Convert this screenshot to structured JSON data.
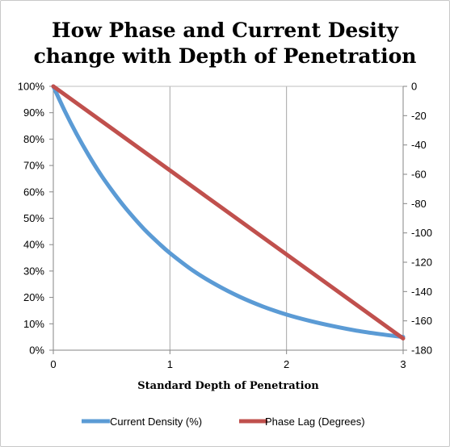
{
  "chart_data": {
    "type": "line",
    "title_lines": [
      "How Phase and Current Desity",
      "change with Depth of Penetration"
    ],
    "xlabel": "Standard Depth of Penetration",
    "ylabel": "",
    "y2label": "",
    "x_ticks": [
      "0",
      "1",
      "2",
      "3"
    ],
    "xlim": [
      0,
      3
    ],
    "ylim": [
      0,
      100
    ],
    "y_ticks": [
      "0%",
      "10%",
      "20%",
      "30%",
      "40%",
      "50%",
      "60%",
      "70%",
      "80%",
      "90%",
      "100%"
    ],
    "y2lim": [
      -180,
      0
    ],
    "y2_ticks": [
      "0",
      "-20",
      "-40",
      "-60",
      "-80",
      "-100",
      "-120",
      "-140",
      "-160",
      "-180"
    ],
    "grid": "vertical",
    "legend_position": "bottom",
    "series": [
      {
        "name": "Current Density (%)",
        "axis": "left",
        "color": "#5B9BD5",
        "x": [
          0,
          0.1,
          0.2,
          0.3,
          0.4,
          0.5,
          0.6,
          0.7,
          0.8,
          0.9,
          1.0,
          1.2,
          1.4,
          1.6,
          1.8,
          2.0,
          2.2,
          2.4,
          2.6,
          2.8,
          3.0
        ],
        "y": [
          100,
          90.5,
          81.9,
          74.1,
          67.0,
          60.7,
          54.9,
          49.7,
          44.9,
          40.7,
          36.8,
          30.1,
          24.7,
          20.2,
          16.5,
          13.5,
          11.1,
          9.1,
          7.4,
          6.1,
          5.0
        ]
      },
      {
        "name": "Phase Lag (Degrees)",
        "axis": "right",
        "color": "#C0504D",
        "x": [
          0,
          3
        ],
        "y": [
          0,
          -172
        ]
      }
    ]
  }
}
